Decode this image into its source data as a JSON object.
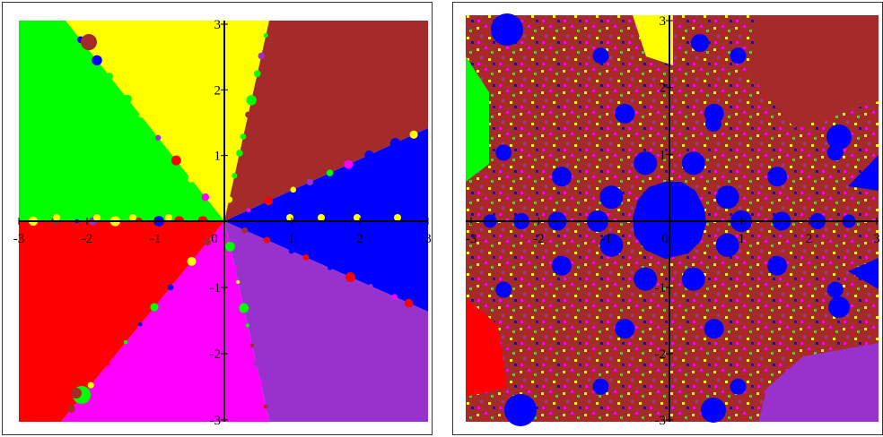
{
  "panels": [
    {
      "id": "left",
      "x_ticks": [
        "-3",
        "-2",
        "-1",
        "0",
        "1",
        "2",
        "3"
      ],
      "y_ticks": [
        "3",
        "2",
        "1",
        "-1",
        "-2",
        "-3"
      ],
      "basin_colors": [
        "#ffff00",
        "#a52a2a",
        "#0000ff",
        "#9932cc",
        "#ff00ff",
        "#ff0000",
        "#00ff00"
      ]
    },
    {
      "id": "right",
      "x_ticks": [
        "-3",
        "-2",
        "-1",
        "0",
        "1",
        "2",
        "3"
      ],
      "y_ticks": [
        "3",
        "2",
        "1",
        "-1",
        "-2",
        "-3"
      ],
      "basin_colors": [
        "#a52a2a",
        "#0000ff",
        "#ffff00",
        "#ff00ff",
        "#00ff00",
        "#9932cc",
        "#ff0000"
      ]
    }
  ]
}
